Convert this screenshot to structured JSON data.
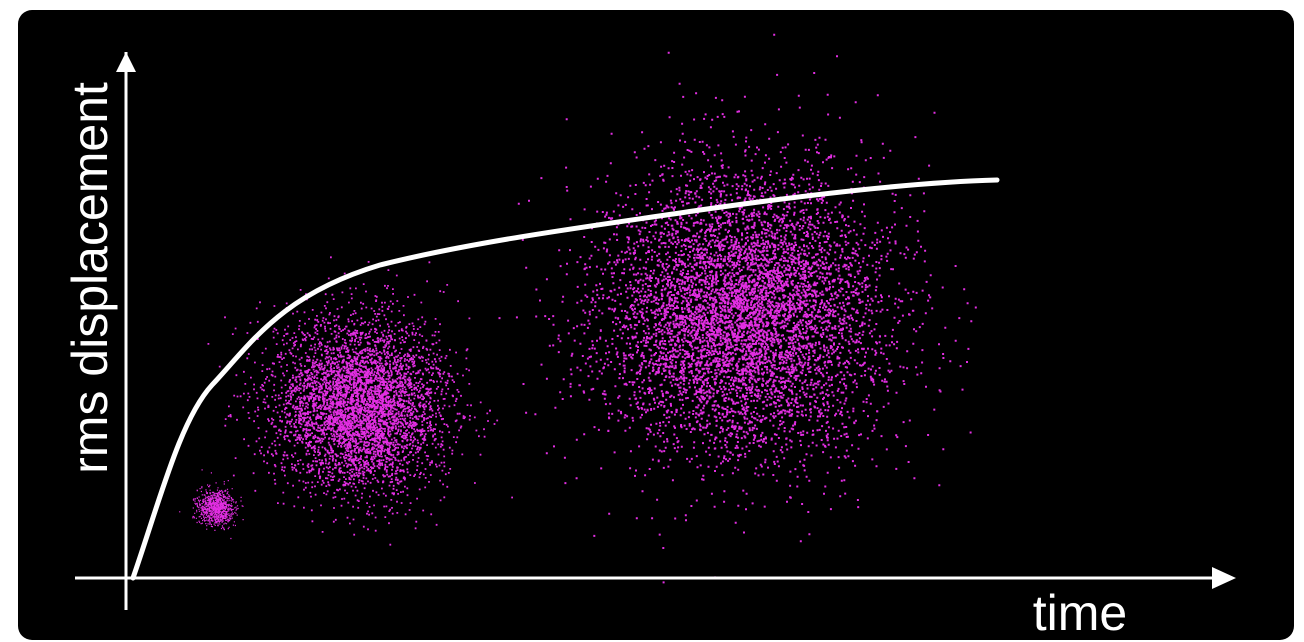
{
  "axes": {
    "y_label": "rms displacement",
    "x_label": "time"
  }
}
